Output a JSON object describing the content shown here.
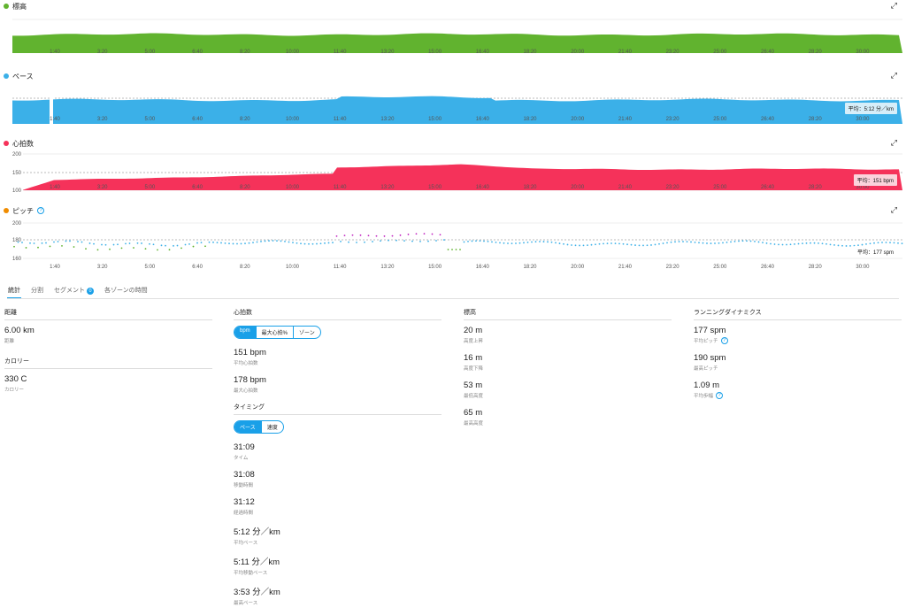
{
  "colors": {
    "elevation": "#61b32f",
    "pace": "#3bb0e8",
    "hr": "#f5325a",
    "cadence": "#f08c00",
    "accent": "#1aa0e8"
  },
  "time_ticks": [
    "1:40",
    "3:20",
    "5:00",
    "6:40",
    "8:20",
    "10:00",
    "11:40",
    "13:20",
    "15:00",
    "16:40",
    "18:20",
    "20:00",
    "21:40",
    "23:20",
    "25:00",
    "26:40",
    "28:20",
    "30:00"
  ],
  "charts": {
    "elevation": {
      "title": "標高"
    },
    "pace": {
      "title": "ペース",
      "avg": "平均：5:12 分／km"
    },
    "hr": {
      "title": "心拍数",
      "avg": "平均：151 bpm",
      "y_ticks": [
        "200",
        "150",
        "100"
      ]
    },
    "cadence": {
      "title": "ピッチ",
      "avg": "平均：177 spm",
      "y_ticks": [
        "200",
        "180",
        "160"
      ]
    }
  },
  "tabs": {
    "stats": "統計",
    "splits": "分割",
    "segments": "セグメント",
    "segments_count": "0",
    "zones": "各ゾーンの時間"
  },
  "distance": {
    "title": "距離",
    "value": "6.00 km",
    "label": "距離"
  },
  "calories": {
    "title": "カロリー",
    "value": "330 C",
    "label": "カロリー"
  },
  "heart_rate": {
    "title": "心拍数",
    "toggle": [
      "bpm",
      "最大心拍%",
      "ゾーン"
    ],
    "avg_value": "151 bpm",
    "avg_label": "平均心拍数",
    "max_value": "178 bpm",
    "max_label": "最大心拍数"
  },
  "timing": {
    "title": "タイミング",
    "toggle": [
      "ペース",
      "速度"
    ],
    "items": [
      {
        "value": "31:09",
        "label": "タイム"
      },
      {
        "value": "31:08",
        "label": "移動時間"
      },
      {
        "value": "31:12",
        "label": "経過時間"
      },
      {
        "value": "5:12 分／km",
        "label": "平均ペース"
      },
      {
        "value": "5:11 分／km",
        "label": "平均移動ペース"
      },
      {
        "value": "3:53 分／km",
        "label": "最高ペース"
      }
    ]
  },
  "elevation_stats": {
    "title": "標高",
    "items": [
      {
        "value": "20 m",
        "label": "高度上昇"
      },
      {
        "value": "16 m",
        "label": "高度下降"
      },
      {
        "value": "53 m",
        "label": "最低高度"
      },
      {
        "value": "65 m",
        "label": "最高高度"
      }
    ]
  },
  "running_dynamics": {
    "title": "ランニングダイナミクス",
    "items": [
      {
        "value": "177 spm",
        "label": "平均ピッチ",
        "help": "?"
      },
      {
        "value": "190 spm",
        "label": "最高ピッチ"
      },
      {
        "value": "1.09 m",
        "label": "平均歩幅",
        "help": "?"
      }
    ]
  }
}
